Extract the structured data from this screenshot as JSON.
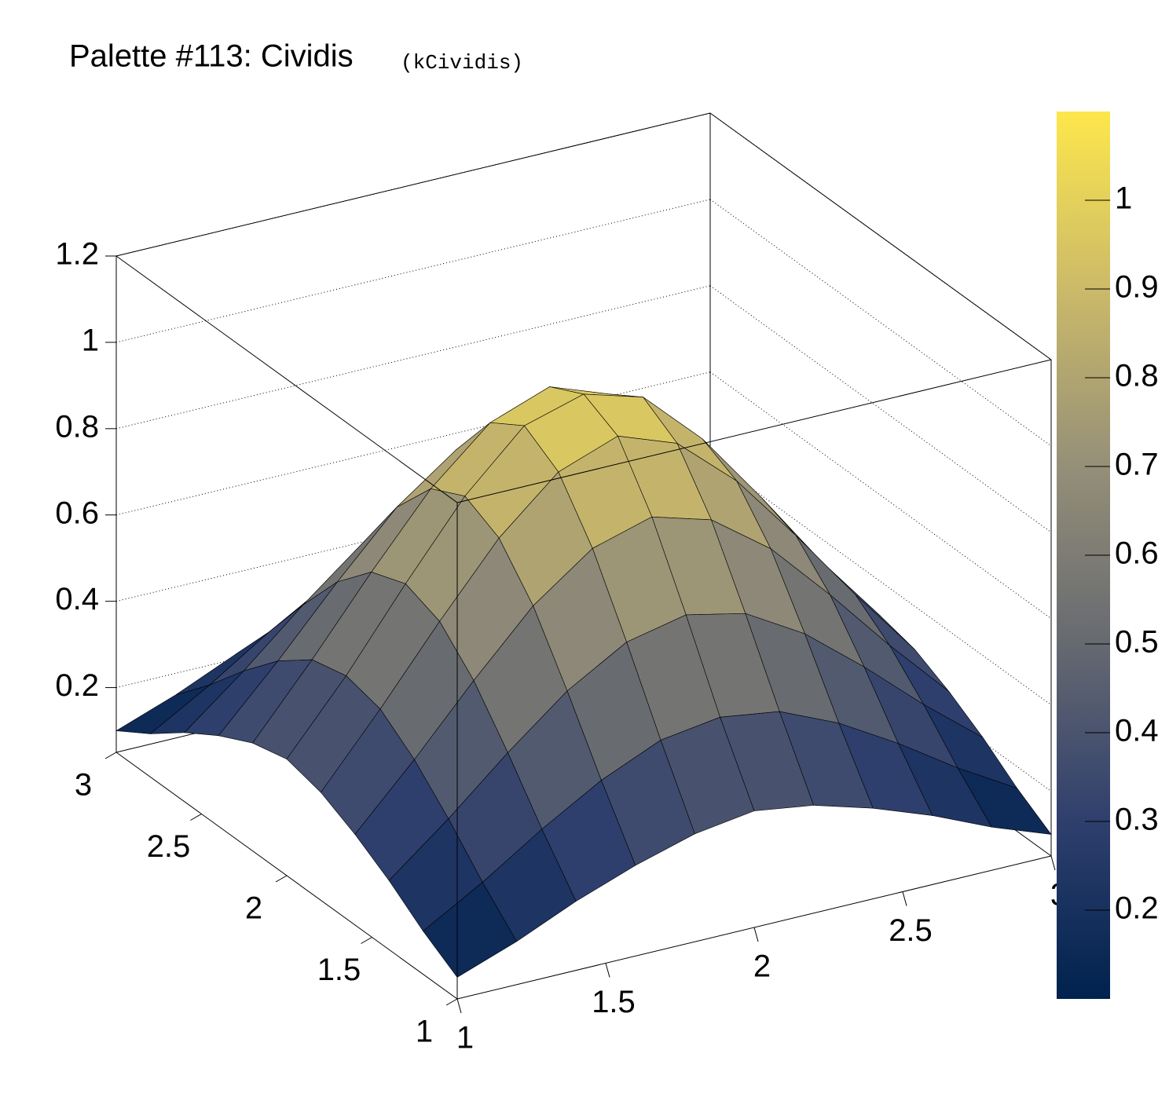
{
  "chart_data": {
    "type": "surface",
    "title": "Palette #113: Cividis",
    "title_code": "(kCividis)",
    "x": [
      1,
      1.2,
      1.4,
      1.6,
      1.8,
      2,
      2.2,
      2.4,
      2.6,
      2.8,
      3
    ],
    "y": [
      1,
      1.2,
      1.4,
      1.6,
      1.8,
      2,
      2.2,
      2.4,
      2.6,
      2.8,
      3
    ],
    "z": [
      [
        0.1,
        0.15,
        0.21,
        0.26,
        0.3,
        0.32,
        0.3,
        0.26,
        0.21,
        0.15,
        0.1
      ],
      [
        0.15,
        0.23,
        0.32,
        0.4,
        0.46,
        0.48,
        0.46,
        0.4,
        0.32,
        0.23,
        0.15
      ],
      [
        0.21,
        0.32,
        0.44,
        0.55,
        0.63,
        0.66,
        0.63,
        0.55,
        0.44,
        0.32,
        0.21
      ],
      [
        0.26,
        0.4,
        0.55,
        0.69,
        0.79,
        0.83,
        0.79,
        0.69,
        0.55,
        0.4,
        0.26
      ],
      [
        0.3,
        0.46,
        0.63,
        0.79,
        0.91,
        0.96,
        0.91,
        0.79,
        0.63,
        0.46,
        0.3
      ],
      [
        0.32,
        0.48,
        0.66,
        0.83,
        0.96,
        1.0,
        0.96,
        0.83,
        0.66,
        0.48,
        0.32
      ],
      [
        0.3,
        0.46,
        0.63,
        0.79,
        0.91,
        0.96,
        0.91,
        0.79,
        0.63,
        0.46,
        0.3
      ],
      [
        0.26,
        0.4,
        0.55,
        0.69,
        0.79,
        0.83,
        0.79,
        0.69,
        0.55,
        0.4,
        0.26
      ],
      [
        0.21,
        0.32,
        0.44,
        0.55,
        0.63,
        0.66,
        0.63,
        0.55,
        0.44,
        0.32,
        0.21
      ],
      [
        0.15,
        0.23,
        0.32,
        0.4,
        0.46,
        0.48,
        0.46,
        0.4,
        0.32,
        0.23,
        0.15
      ],
      [
        0.1,
        0.15,
        0.21,
        0.26,
        0.3,
        0.32,
        0.3,
        0.26,
        0.21,
        0.15,
        0.1
      ]
    ],
    "xlim": [
      1,
      3
    ],
    "ylim": [
      1,
      3
    ],
    "zlim": [
      0.05,
      1.2
    ],
    "xticks": [
      1,
      1.5,
      2,
      2.5,
      3
    ],
    "yticks": [
      1,
      1.5,
      2,
      2.5,
      3
    ],
    "zticks": [
      0.2,
      0.4,
      0.6,
      0.8,
      1,
      1.2
    ],
    "color_range": [
      0.1,
      1.1
    ],
    "colorbar_ticks": [
      0.2,
      0.3,
      0.4,
      0.5,
      0.6,
      0.7,
      0.8,
      0.9,
      1
    ],
    "palette": [
      "#00224e",
      "#2f3f6d",
      "#666970",
      "#958f78",
      "#cbba69",
      "#fde74c"
    ],
    "grid": true
  }
}
